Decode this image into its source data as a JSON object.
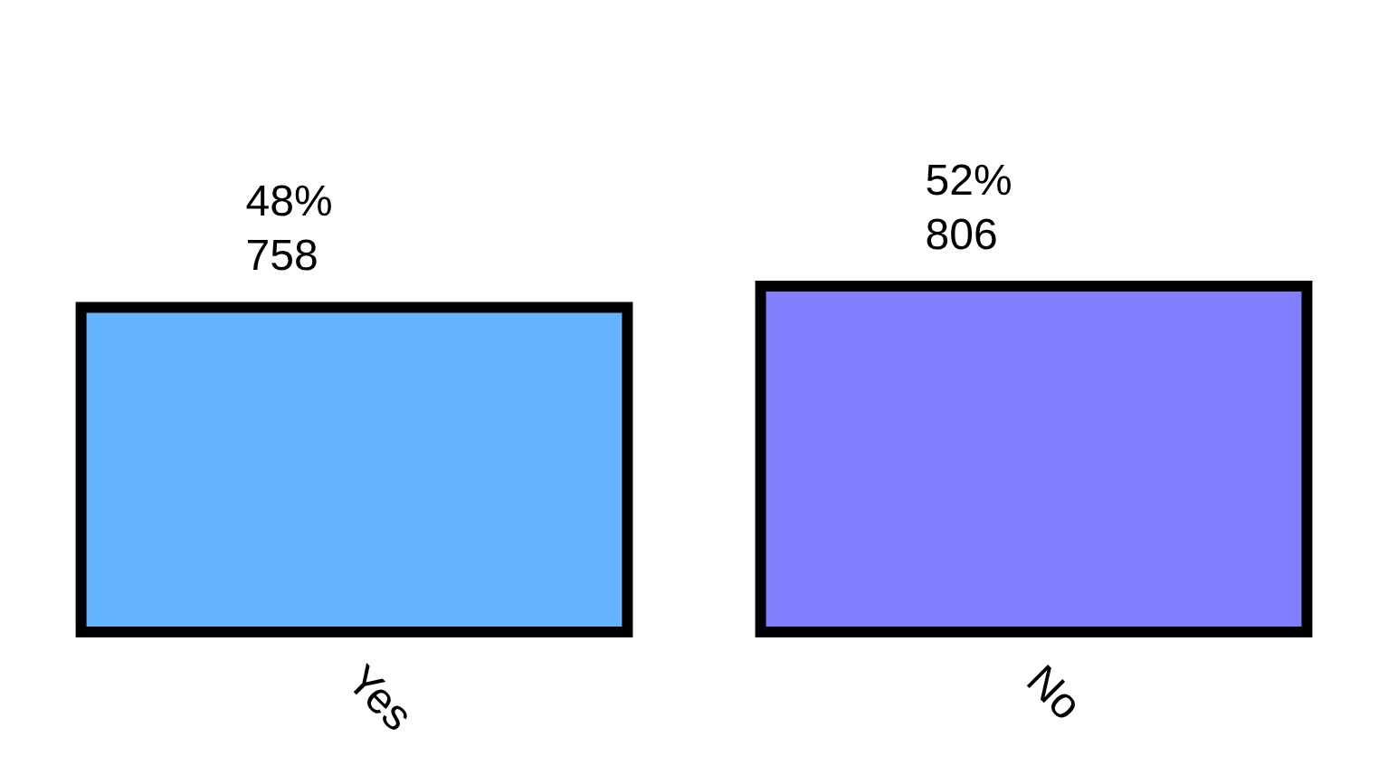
{
  "chart_data": {
    "type": "bar",
    "categories": [
      "Yes",
      "No"
    ],
    "values": [
      758,
      806
    ],
    "colors": [
      "#66b3ff",
      "#8080ff"
    ],
    "value_labels": [
      "48%\n758",
      "52%\n806"
    ],
    "grid": false
  }
}
